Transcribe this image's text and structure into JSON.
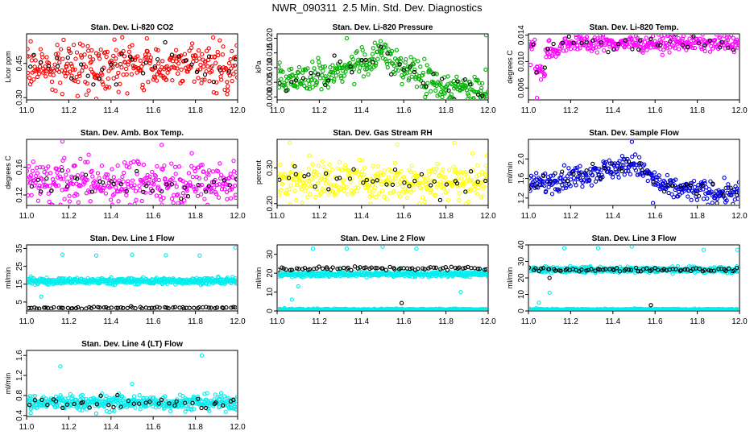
{
  "figure_title": "NWR_090311  2.5 Min. Std. Dev. Diagnostics",
  "colors": {
    "highlight_points": "#000000"
  },
  "chart_data": [
    {
      "type": "scatter",
      "title": "Stan. Dev. Li-820 CO2",
      "xlabel": "",
      "ylabel": "Licor ppm",
      "xlim": [
        11.0,
        12.0
      ],
      "ylim": [
        0.29,
        0.58
      ],
      "xticks": [
        "11.0",
        "11.2",
        "11.4",
        "11.6",
        "11.8",
        "12.0"
      ],
      "yticks": [
        "0.30",
        "0.45"
      ],
      "grid": false,
      "legend": "none",
      "series": [
        {
          "color": "#ff0000",
          "pattern": "noise",
          "n": 340,
          "center": 0.44,
          "spread": 0.09,
          "outliers": [
            [
              11.33,
              0.295
            ],
            [
              11.95,
              0.315
            ],
            [
              11.57,
              0.56
            ]
          ]
        },
        {
          "color": "#000000",
          "pattern": "noise",
          "n": 34,
          "center": 0.44,
          "spread": 0.07
        }
      ]
    },
    {
      "type": "scatter",
      "title": "Stan. Dev. Li-820 Pressure",
      "xlabel": "",
      "ylabel": "kPa",
      "xlim": [
        11.0,
        12.0
      ],
      "ylim": [
        -0.001,
        0.0215
      ],
      "xticks": [
        "11.0",
        "11.2",
        "11.4",
        "11.6",
        "11.8",
        "12.0"
      ],
      "yticks": [
        "0.000",
        "0.005",
        "0.010",
        "0.015",
        "0.020"
      ],
      "grid": false,
      "legend": "none",
      "series": [
        {
          "color": "#00b000",
          "pattern": "pressure",
          "n": 340,
          "outliers": [
            [
              11.99,
              0.021
            ],
            [
              11.33,
              0.02
            ],
            [
              11.49,
              0.019
            ]
          ]
        },
        {
          "color": "#000000",
          "pattern": "pressure",
          "n": 34
        }
      ]
    },
    {
      "type": "scatter",
      "title": "Stan. Dev. Li-820 Temp.",
      "xlabel": "",
      "ylabel": "degrees C",
      "xlim": [
        11.0,
        12.0
      ],
      "ylim": [
        0.0042,
        0.0142
      ],
      "xticks": [
        "11.0",
        "11.2",
        "11.4",
        "11.6",
        "11.8",
        "12.0"
      ],
      "yticks": [
        "0.006",
        "0.010",
        "0.014"
      ],
      "grid": false,
      "legend": "none",
      "series": [
        {
          "color": "#ff00ff",
          "pattern": "temp",
          "n": 340,
          "outliers": [
            [
              11.04,
              0.0045
            ],
            [
              11.01,
              0.0095
            ]
          ]
        },
        {
          "color": "#000000",
          "pattern": "temp",
          "n": 34
        }
      ]
    },
    {
      "type": "scatter",
      "title": "Stan. Dev. Amb. Box Temp.",
      "xlabel": "",
      "ylabel": "degrees C",
      "xlim": [
        11.0,
        12.0
      ],
      "ylim": [
        0.105,
        0.2
      ],
      "xticks": [
        "11.0",
        "11.2",
        "11.4",
        "11.6",
        "11.8",
        "12.0"
      ],
      "yticks": [
        "0.12",
        "0.16"
      ],
      "grid": false,
      "legend": "none",
      "series": [
        {
          "color": "#ff00ff",
          "pattern": "noise",
          "n": 340,
          "center": 0.139,
          "spread": 0.028,
          "outliers": [
            [
              11.17,
              0.197
            ],
            [
              11.64,
              0.192
            ]
          ]
        },
        {
          "color": "#000000",
          "pattern": "noise",
          "n": 34,
          "center": 0.135,
          "spread": 0.02
        }
      ]
    },
    {
      "type": "scatter",
      "title": "Stan. Dev. Gas Stream RH",
      "xlabel": "",
      "ylabel": "percent",
      "xlim": [
        11.0,
        12.0
      ],
      "ylim": [
        0.195,
        0.38
      ],
      "xticks": [
        "11.0",
        "11.2",
        "11.4",
        "11.6",
        "11.8",
        "12.0"
      ],
      "yticks": [
        "0.20",
        "0.30"
      ],
      "grid": false,
      "legend": "none",
      "series": [
        {
          "color": "#ffff00",
          "pattern": "noise",
          "n": 340,
          "center": 0.265,
          "spread": 0.05,
          "outliers": [
            [
              11.06,
              0.37
            ],
            [
              11.84,
              0.37
            ],
            [
              11.57,
              0.365
            ]
          ]
        },
        {
          "color": "#000000",
          "pattern": "noise",
          "n": 34,
          "center": 0.265,
          "spread": 0.04
        }
      ]
    },
    {
      "type": "scatter",
      "title": "Stan. Dev. Sample Flow",
      "xlabel": "",
      "ylabel": "ml/min",
      "xlim": [
        11.0,
        12.0
      ],
      "ylim": [
        1.05,
        2.4
      ],
      "xticks": [
        "11.0",
        "11.2",
        "11.4",
        "11.6",
        "11.8",
        "12.0"
      ],
      "yticks": [
        "1.2",
        "1.6",
        "2.0"
      ],
      "grid": false,
      "legend": "none",
      "series": [
        {
          "color": "#0000dd",
          "pattern": "flow",
          "n": 340,
          "outliers": [
            [
              11.49,
              2.35
            ],
            [
              11.59,
              1.1
            ]
          ]
        },
        {
          "color": "#000000",
          "pattern": "flow",
          "n": 34
        }
      ]
    },
    {
      "type": "scatter",
      "title": "Stan. Dev. Line 1 Flow",
      "xlabel": "",
      "ylabel": "ml/min",
      "xlim": [
        11.0,
        12.0
      ],
      "ylim": [
        0,
        37
      ],
      "xticks": [
        "11.0",
        "11.2",
        "11.4",
        "11.6",
        "11.8",
        "12.0"
      ],
      "yticks": [
        "5",
        "15",
        "25",
        "35"
      ],
      "grid": false,
      "legend": "none",
      "series": [
        {
          "color": "#00eeee",
          "pattern": "band",
          "n": 480,
          "center": 16.8,
          "spread": 1.6,
          "outliers": [
            [
              11.17,
              31.5
            ],
            [
              11.33,
              31
            ],
            [
              11.5,
              31.5
            ],
            [
              11.66,
              31.2
            ],
            [
              11.82,
              31
            ],
            [
              11.99,
              35.5
            ],
            [
              11.07,
              8
            ]
          ]
        },
        {
          "color": "#000000",
          "pattern": "band",
          "n": 70,
          "center": 1.8,
          "spread": 0.5
        }
      ]
    },
    {
      "type": "scatter",
      "title": "Stan. Dev. Line 2 Flow",
      "xlabel": "",
      "ylabel": "ml/min",
      "xlim": [
        11.0,
        12.0
      ],
      "ylim": [
        0,
        35
      ],
      "xticks": [
        "11.0",
        "11.2",
        "11.4",
        "11.6",
        "11.8",
        "12.0"
      ],
      "yticks": [
        "0",
        "10",
        "20",
        "30"
      ],
      "grid": false,
      "legend": "none",
      "series": [
        {
          "color": "#00eeee",
          "pattern": "band",
          "n": 420,
          "center": 19.5,
          "spread": 1.3,
          "outliers": [
            [
              11.07,
              6
            ],
            [
              11.1,
              13
            ],
            [
              11.17,
              33
            ],
            [
              11.33,
              33
            ],
            [
              11.5,
              34
            ],
            [
              11.66,
              33
            ],
            [
              11.87,
              10
            ]
          ]
        },
        {
          "color": "#00eeee",
          "pattern": "band",
          "n": 320,
          "center": 0.8,
          "spread": 0.4
        },
        {
          "color": "#000000",
          "pattern": "band",
          "n": 72,
          "center": 22.5,
          "spread": 0.9,
          "outliers": [
            [
              11.59,
              4.2
            ]
          ]
        }
      ]
    },
    {
      "type": "scatter",
      "title": "Stan. Dev. Line 3 Flow",
      "xlabel": "",
      "ylabel": "ml/min",
      "xlim": [
        11.0,
        12.0
      ],
      "ylim": [
        0,
        40
      ],
      "xticks": [
        "11.0",
        "11.2",
        "11.4",
        "11.6",
        "11.8",
        "12.0"
      ],
      "yticks": [
        "0",
        "10",
        "20",
        "30",
        "40"
      ],
      "grid": false,
      "legend": "none",
      "series": [
        {
          "color": "#00eeee",
          "pattern": "band",
          "n": 420,
          "center": 25,
          "spread": 1.6,
          "outliers": [
            [
              11.05,
              5
            ],
            [
              11.1,
              11
            ],
            [
              11.17,
              38
            ],
            [
              11.33,
              38
            ],
            [
              11.49,
              39
            ],
            [
              11.83,
              37
            ],
            [
              11.99,
              37
            ]
          ]
        },
        {
          "color": "#00eeee",
          "pattern": "band",
          "n": 320,
          "center": 0.9,
          "spread": 0.4
        },
        {
          "color": "#000000",
          "pattern": "band",
          "n": 72,
          "center": 25,
          "spread": 1.0,
          "outliers": [
            [
              11.1,
              20
            ],
            [
              11.58,
              3.5
            ]
          ]
        }
      ]
    },
    {
      "type": "scatter",
      "title": "Stan. Dev. Line 4 (LT) Flow",
      "xlabel": "",
      "ylabel": "ml/min",
      "xlim": [
        11.0,
        12.0
      ],
      "ylim": [
        0.38,
        1.7
      ],
      "xticks": [
        "11.0",
        "11.2",
        "11.4",
        "11.6",
        "11.8",
        "12.0"
      ],
      "yticks": [
        "0.4",
        "0.8",
        "1.2",
        "1.6"
      ],
      "grid": false,
      "legend": "none",
      "series": [
        {
          "color": "#00eeee",
          "pattern": "noise",
          "n": 420,
          "center": 0.66,
          "spread": 0.14,
          "outliers": [
            [
              11.16,
              1.38
            ],
            [
              11.5,
              1.03
            ],
            [
              11.83,
              1.6
            ],
            [
              11.02,
              0.45
            ],
            [
              11.33,
              0.44
            ]
          ]
        },
        {
          "color": "#000000",
          "pattern": "noise",
          "n": 38,
          "center": 0.65,
          "spread": 0.1
        }
      ]
    }
  ]
}
